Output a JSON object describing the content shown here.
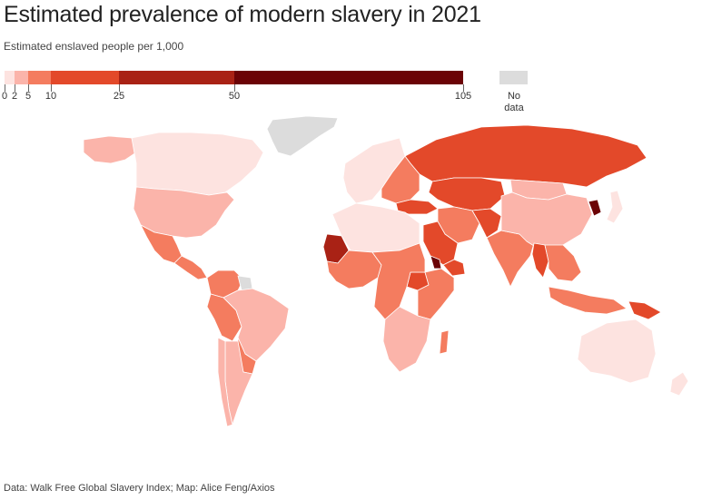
{
  "header": {
    "title": "Estimated prevalence of modern slavery in 2021",
    "subtitle": "Estimated enslaved people per 1,000"
  },
  "legend": {
    "bins": [
      {
        "from": 0,
        "to": 2,
        "color": "#fde3e0"
      },
      {
        "from": 2,
        "to": 5,
        "color": "#fbb4aa"
      },
      {
        "from": 5,
        "to": 10,
        "color": "#f47c5f"
      },
      {
        "from": 10,
        "to": 25,
        "color": "#e3492a"
      },
      {
        "from": 25,
        "to": 50,
        "color": "#a92215"
      },
      {
        "from": 50,
        "to": 105,
        "color": "#6b0306"
      }
    ],
    "ticks": [
      "0",
      "2",
      "5",
      "10",
      "25",
      "50",
      "105"
    ],
    "no_data_label": "No data",
    "no_data_color": "#dcdcdc"
  },
  "map": {
    "regions": [
      {
        "name": "Alaska",
        "value": 2.5
      },
      {
        "name": "Canada",
        "value": 1.5
      },
      {
        "name": "United States",
        "value": 3.3
      },
      {
        "name": "Greenland",
        "value": null
      },
      {
        "name": "Mexico",
        "value": 6.6
      },
      {
        "name": "Central America",
        "value": 7.0
      },
      {
        "name": "Colombia / Venezuela",
        "value": 7.0
      },
      {
        "name": "Guianas",
        "value": null
      },
      {
        "name": "Brazil",
        "value": 5.0
      },
      {
        "name": "Peru / Bolivia",
        "value": 7.0
      },
      {
        "name": "Argentina",
        "value": 3.0
      },
      {
        "name": "Chile",
        "value": 3.0
      },
      {
        "name": "Paraguay / Uruguay",
        "value": 6.0
      },
      {
        "name": "Western Europe",
        "value": 2.0
      },
      {
        "name": "Eastern Europe",
        "value": 7.0
      },
      {
        "name": "Russia",
        "value": 13.0
      },
      {
        "name": "Central Asia",
        "value": 11.0
      },
      {
        "name": "Afghanistan",
        "value": 13.0
      },
      {
        "name": "Iran",
        "value": 9.0
      },
      {
        "name": "Saudi Arabia",
        "value": 21.0
      },
      {
        "name": "Arabian Gulf",
        "value": 12.0
      },
      {
        "name": "Turkey",
        "value": 15.0
      },
      {
        "name": "North Africa",
        "value": 2.0
      },
      {
        "name": "Mauritania",
        "value": 32.0
      },
      {
        "name": "Eritrea",
        "value": 90.0
      },
      {
        "name": "West Africa",
        "value": 6.0
      },
      {
        "name": "Central Africa",
        "value": 7.0
      },
      {
        "name": "South Sudan",
        "value": 10.3
      },
      {
        "name": "East Africa",
        "value": 6.0
      },
      {
        "name": "Southern Africa",
        "value": 3.5
      },
      {
        "name": "Madagascar",
        "value": 6.0
      },
      {
        "name": "India",
        "value": 8.0
      },
      {
        "name": "Myanmar",
        "value": 12.0
      },
      {
        "name": "China",
        "value": 4.0
      },
      {
        "name": "Mongolia",
        "value": 4.0
      },
      {
        "name": "North Korea",
        "value": 104.6
      },
      {
        "name": "Japan",
        "value": 1.1
      },
      {
        "name": "Southeast Asia",
        "value": 6.0
      },
      {
        "name": "Indonesia",
        "value": 6.7
      },
      {
        "name": "Papua New Guinea",
        "value": 10.3
      },
      {
        "name": "Australia",
        "value": 0.6
      },
      {
        "name": "New Zealand",
        "value": 0.6
      }
    ]
  },
  "footer": {
    "source": "Data: Walk Free Global Slavery Index; Map: Alice Feng/Axios"
  }
}
